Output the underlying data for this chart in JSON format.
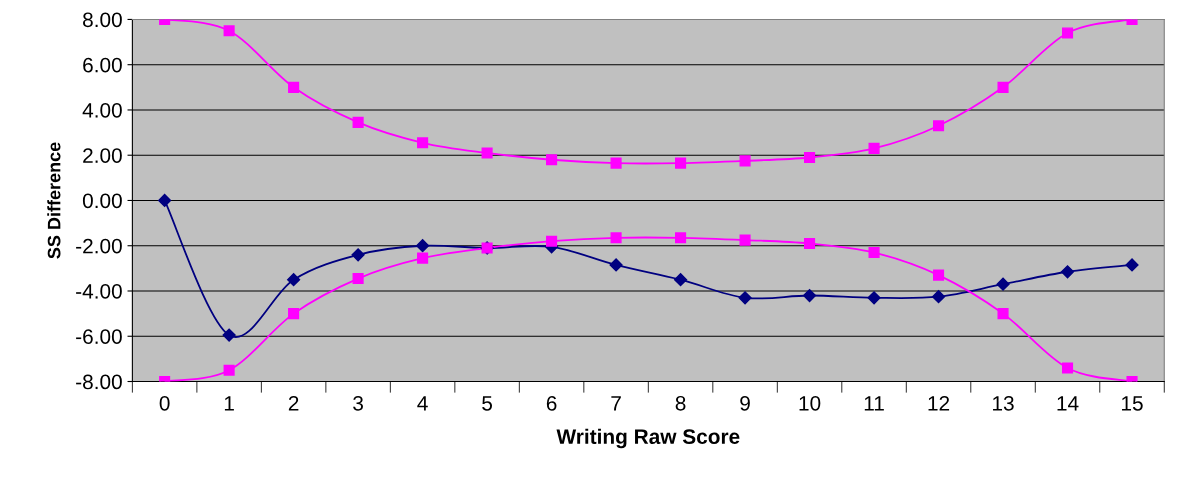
{
  "chart_data": {
    "type": "line",
    "xlabel": "Writing Raw Score",
    "ylabel": "SS Difference",
    "categories": [
      "0",
      "1",
      "2",
      "3",
      "4",
      "5",
      "6",
      "7",
      "8",
      "9",
      "10",
      "11",
      "12",
      "13",
      "14",
      "15"
    ],
    "ylim": [
      -8,
      8
    ],
    "yticks": [
      {
        "value": -8,
        "label": "-8.00"
      },
      {
        "value": -6,
        "label": "-6.00"
      },
      {
        "value": -4,
        "label": "-4.00"
      },
      {
        "value": -2,
        "label": "-2.00"
      },
      {
        "value": 0,
        "label": "0.00"
      },
      {
        "value": 2,
        "label": "2.00"
      },
      {
        "value": 4,
        "label": "4.00"
      },
      {
        "value": 6,
        "label": "6.00"
      },
      {
        "value": 8,
        "label": "8.00"
      }
    ],
    "grid": "y",
    "series": [
      {
        "color": "#000080",
        "marker": "diamond",
        "values": [
          0,
          -5.95,
          -3.5,
          -2.4,
          -2.0,
          -2.1,
          -2.05,
          -2.85,
          -3.5,
          -4.3,
          -4.2,
          -4.3,
          -4.25,
          -3.7,
          -3.15,
          -2.85
        ]
      },
      {
        "color": "#ff00ff",
        "marker": "square",
        "values": [
          8,
          7.5,
          5.0,
          3.45,
          2.55,
          2.1,
          1.8,
          1.65,
          1.65,
          1.75,
          1.9,
          2.3,
          3.3,
          5.0,
          7.4,
          8
        ]
      },
      {
        "color": "#ff00ff",
        "marker": "square",
        "values": [
          -8,
          -7.5,
          -5.0,
          -3.45,
          -2.55,
          -2.1,
          -1.8,
          -1.65,
          -1.65,
          -1.75,
          -1.9,
          -2.3,
          -3.3,
          -5.0,
          -7.4,
          -8
        ]
      }
    ]
  }
}
